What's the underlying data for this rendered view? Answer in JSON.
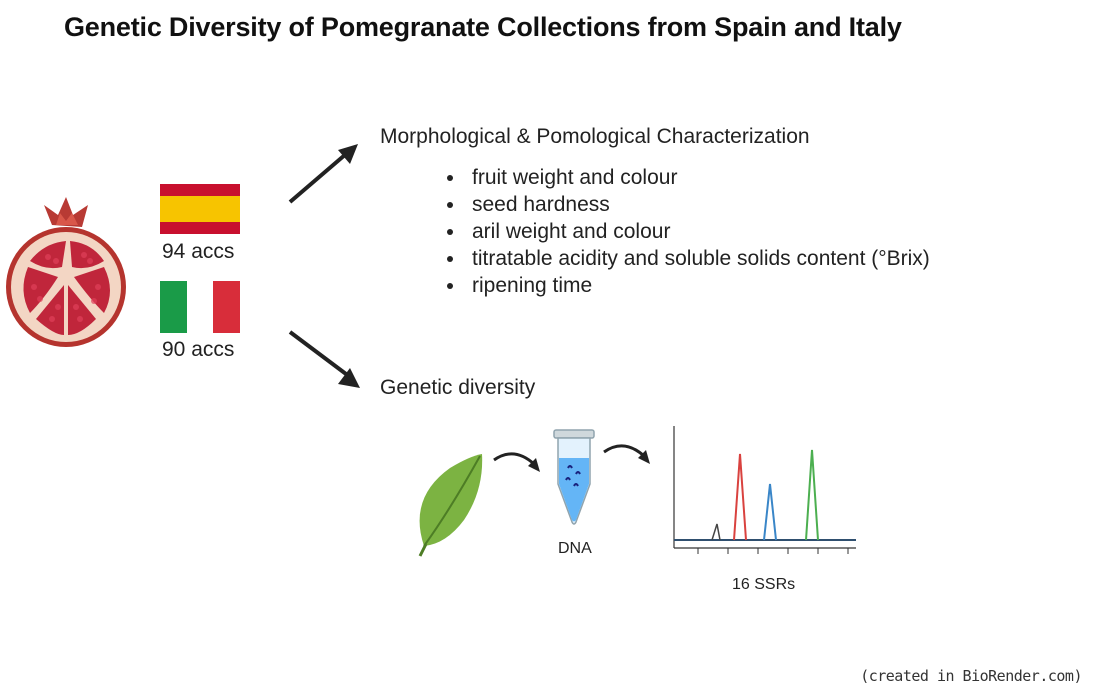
{
  "title": "Genetic Diversity of Pomegranate Collections from Spain and Italy",
  "spain": {
    "count_label": "94 accs",
    "flag_colors": [
      "#c8102e",
      "#f7c400",
      "#c8102e"
    ]
  },
  "italy": {
    "count_label": "90 accs",
    "flag_colors": [
      "#1a9b48",
      "#ffffff",
      "#d82d3a"
    ]
  },
  "morphology": {
    "heading": "Morphological & Pomological Characterization",
    "items": [
      "fruit weight and colour",
      "seed hardness",
      "aril weight and colour",
      "titratable acidity and soluble solids content (°Brix)",
      "ripening time"
    ]
  },
  "genetics": {
    "heading": "Genetic diversity",
    "dna_label": "DNA",
    "ssr_label": "16 SSRs",
    "peak_colors": [
      "#444444",
      "#d9423f",
      "#3a86c8",
      "#4caf50"
    ]
  },
  "credit": "(created in BioRender.com)"
}
